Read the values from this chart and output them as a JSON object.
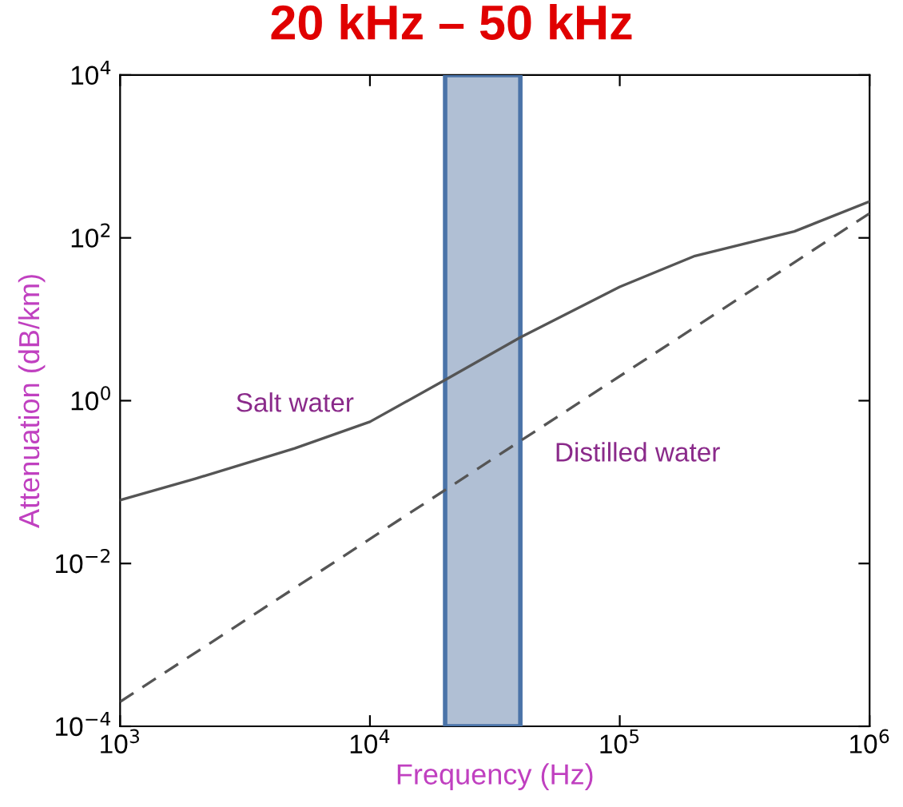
{
  "chart_data": {
    "type": "line",
    "title": "20 kHz – 50 kHz",
    "xlabel": "Frequency (Hz)",
    "ylabel": "Attenuation (dB/km)",
    "log": "xy",
    "xlim": [
      1000,
      1000000
    ],
    "ylim": [
      0.0001,
      10000
    ],
    "xticks": [
      {
        "value": 1000,
        "label": "10$^{3}$"
      },
      {
        "value": 10000,
        "label": "10$^{4}$"
      },
      {
        "value": 100000,
        "label": "10$^{5}$"
      },
      {
        "value": 1000000,
        "label": "10$^{6}$"
      }
    ],
    "yticks": [
      {
        "value": 0.0001,
        "label": "10$^{−4}$"
      },
      {
        "value": 0.01,
        "label": "10$^{−2}$"
      },
      {
        "value": 1,
        "label": "10$^{0}$"
      },
      {
        "value": 100,
        "label": "10$^{2}$"
      },
      {
        "value": 10000,
        "label": "10$^{4}$"
      }
    ],
    "grid": false,
    "legend": false,
    "series": [
      {
        "name": "Salt water",
        "color": "#555555",
        "line_style": "solid",
        "x": [
          1000,
          2000,
          5000,
          10000,
          20000,
          40000,
          100000,
          200000,
          500000,
          1000000
        ],
        "values": [
          0.06,
          0.11,
          0.26,
          0.55,
          1.8,
          6,
          25,
          60,
          120,
          280
        ]
      },
      {
        "name": "Distilled water",
        "color": "#555555",
        "line_style": "dashed",
        "x": [
          1000,
          1000000
        ],
        "values": [
          0.0002,
          200
        ]
      }
    ],
    "bands": [
      {
        "axis": "x",
        "from": 20000,
        "to": 40000,
        "color": "#b0bfd4"
      }
    ]
  }
}
